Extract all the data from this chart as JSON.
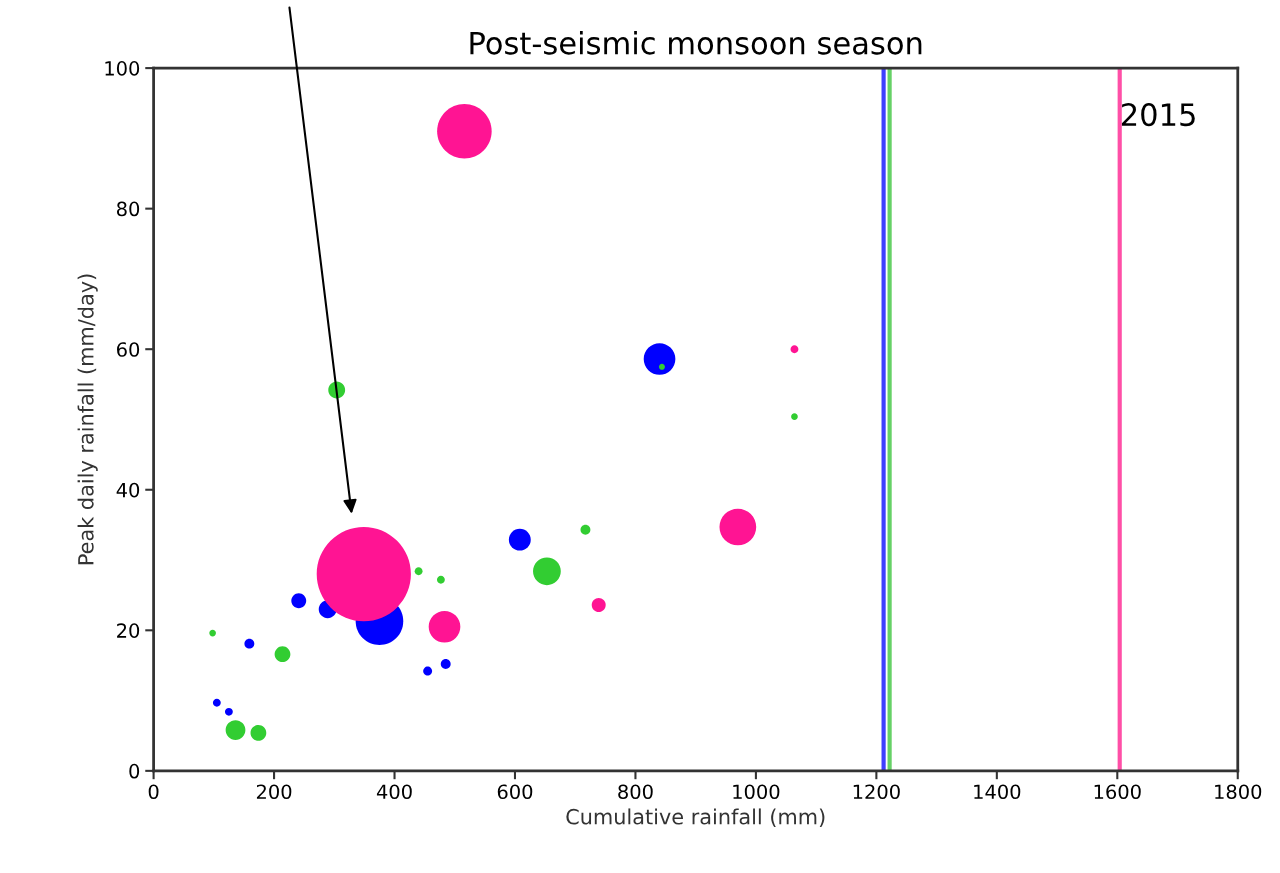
{
  "chart_data": {
    "type": "bubble",
    "title": "Post-seismic monsoon season",
    "xlabel": "Cumulative rainfall (mm)",
    "ylabel": "Peak daily rainfall (mm/day)",
    "xlim": [
      0,
      1800
    ],
    "xticks": [
      0,
      200,
      400,
      600,
      800,
      1000,
      1200,
      1400,
      1600,
      1800
    ],
    "ylim": [
      0,
      100
    ],
    "yticks": [
      0,
      20,
      40,
      60,
      80,
      100
    ],
    "grid": false,
    "legend": false,
    "series": [
      {
        "color": "#0000ff",
        "x": [
          375,
          241,
          289,
          159,
          105,
          125,
          455,
          485,
          608,
          840
        ],
        "values": [
          21.3,
          24.2,
          23.0,
          18.1,
          9.7,
          8.4,
          14.2,
          15.2,
          32.9,
          58.6
        ],
        "sizes": [
          0.255,
          0.025,
          0.036,
          0.011,
          0.007,
          0.007,
          0.009,
          0.011,
          0.054,
          0.113
        ]
      },
      {
        "color": "#ff1493",
        "x": [
          349,
          516,
          483,
          970,
          739,
          1064
        ],
        "values": [
          28.0,
          91.0,
          20.5,
          34.7,
          23.6,
          60.0
        ],
        "sizes": [
          1,
          0.335,
          0.113,
          0.152,
          0.022,
          0.007
        ]
      },
      {
        "color": "#32cd32",
        "x": [
          304,
          98,
          214,
          136,
          174,
          440,
          477,
          653,
          717,
          844,
          1064
        ],
        "values": [
          54.2,
          19.6,
          16.6,
          5.8,
          5.4,
          28.4,
          27.2,
          28.4,
          34.3,
          57.5,
          50.4
        ],
        "sizes": [
          0.032,
          0.005,
          0.028,
          0.044,
          0.028,
          0.007,
          0.007,
          0.087,
          0.011,
          0.004,
          0.005
        ]
      }
    ],
    "ref_lines": [
      {
        "axis": "x",
        "value": 1212,
        "color": "#3f3fff"
      },
      {
        "axis": "x",
        "value": 1222,
        "color": "#66d166"
      },
      {
        "axis": "x",
        "value": 1604,
        "color": "#ff4fa7"
      }
    ],
    "annotations": [
      {
        "text": "2015",
        "x": 1604,
        "y": 93
      }
    ]
  }
}
